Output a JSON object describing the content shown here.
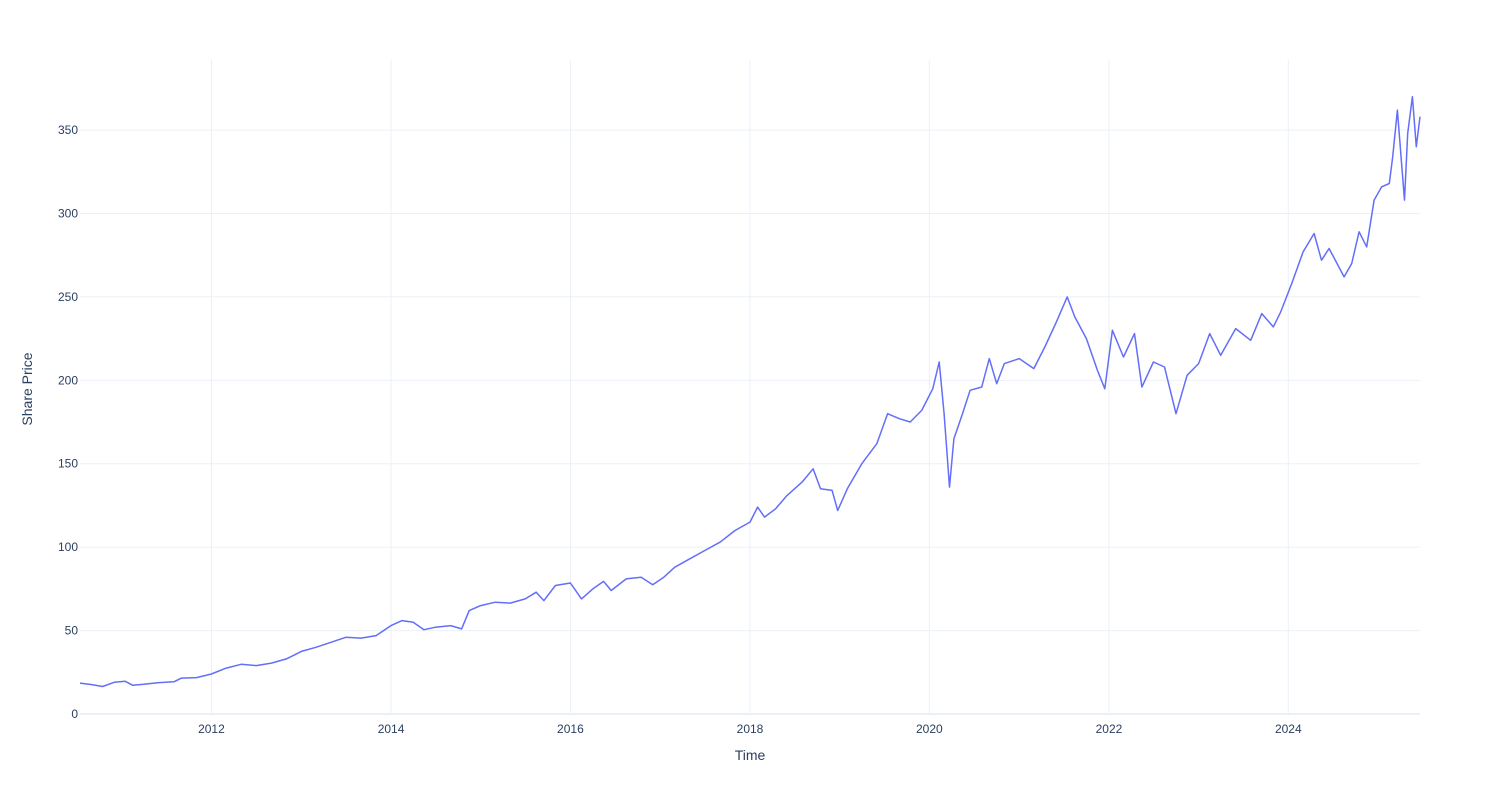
{
  "colors": {
    "background": "#ffffff",
    "grid": "#ebf0f8",
    "zeroline": "#ebf0f8",
    "text": "#2a3f5f",
    "series": "#636efa"
  },
  "chart_data": {
    "type": "line",
    "title": "",
    "xlabel": "Time",
    "ylabel": "Share Price",
    "xlim": [
      "2010-07-15",
      "2025-06-20"
    ],
    "ylim": [
      0,
      392
    ],
    "grid": true,
    "legend": "none",
    "x_ticks": [
      "2012",
      "2014",
      "2016",
      "2018",
      "2020",
      "2022",
      "2024"
    ],
    "y_ticks": [
      "0",
      "50",
      "100",
      "150",
      "200",
      "250",
      "300",
      "350"
    ],
    "series": [
      {
        "color": "#636efa",
        "points": [
          [
            "2010-07-15",
            18.5
          ],
          [
            "2010-09-01",
            17.6
          ],
          [
            "2010-10-15",
            16.5
          ],
          [
            "2010-12-01",
            19.0
          ],
          [
            "2011-01-15",
            19.6
          ],
          [
            "2011-02-15",
            17.2
          ],
          [
            "2011-04-01",
            17.8
          ],
          [
            "2011-06-01",
            18.8
          ],
          [
            "2011-08-01",
            19.3
          ],
          [
            "2011-09-01",
            21.5
          ],
          [
            "2011-11-01",
            21.8
          ],
          [
            "2012-01-01",
            24.0
          ],
          [
            "2012-03-01",
            27.5
          ],
          [
            "2012-05-01",
            29.8
          ],
          [
            "2012-07-01",
            29.0
          ],
          [
            "2012-09-01",
            30.5
          ],
          [
            "2012-11-01",
            33.0
          ],
          [
            "2013-01-01",
            37.5
          ],
          [
            "2013-03-01",
            40.0
          ],
          [
            "2013-05-01",
            43.0
          ],
          [
            "2013-07-01",
            46.0
          ],
          [
            "2013-09-01",
            45.5
          ],
          [
            "2013-11-01",
            47.0
          ],
          [
            "2014-01-01",
            53.0
          ],
          [
            "2014-02-15",
            56.0
          ],
          [
            "2014-04-01",
            55.0
          ],
          [
            "2014-05-15",
            50.5
          ],
          [
            "2014-07-01",
            52.0
          ],
          [
            "2014-09-01",
            53.0
          ],
          [
            "2014-10-15",
            51.0
          ],
          [
            "2014-11-15",
            62.0
          ],
          [
            "2015-01-01",
            65.0
          ],
          [
            "2015-03-01",
            67.0
          ],
          [
            "2015-05-01",
            66.5
          ],
          [
            "2015-07-01",
            69.0
          ],
          [
            "2015-08-15",
            73.0
          ],
          [
            "2015-09-15",
            68.0
          ],
          [
            "2015-11-01",
            77.0
          ],
          [
            "2016-01-01",
            78.5
          ],
          [
            "2016-02-15",
            69.0
          ],
          [
            "2016-04-01",
            75.0
          ],
          [
            "2016-05-15",
            79.5
          ],
          [
            "2016-06-15",
            74.0
          ],
          [
            "2016-08-15",
            81.0
          ],
          [
            "2016-10-15",
            82.0
          ],
          [
            "2016-12-01",
            77.5
          ],
          [
            "2017-01-15",
            82.0
          ],
          [
            "2017-03-01",
            88.0
          ],
          [
            "2017-05-01",
            93.0
          ],
          [
            "2017-07-01",
            98.0
          ],
          [
            "2017-09-01",
            103.0
          ],
          [
            "2017-11-01",
            110.0
          ],
          [
            "2018-01-01",
            115.0
          ],
          [
            "2018-02-01",
            124.0
          ],
          [
            "2018-03-01",
            118.0
          ],
          [
            "2018-04-15",
            123.0
          ],
          [
            "2018-06-01",
            131.0
          ],
          [
            "2018-08-01",
            139.0
          ],
          [
            "2018-09-15",
            147.0
          ],
          [
            "2018-10-15",
            135.0
          ],
          [
            "2018-12-01",
            134.0
          ],
          [
            "2018-12-24",
            122.0
          ],
          [
            "2019-02-01",
            135.0
          ],
          [
            "2019-04-01",
            150.0
          ],
          [
            "2019-06-01",
            162.0
          ],
          [
            "2019-07-15",
            180.0
          ],
          [
            "2019-09-01",
            177.0
          ],
          [
            "2019-10-15",
            175.0
          ],
          [
            "2019-12-01",
            182.0
          ],
          [
            "2020-01-15",
            195.0
          ],
          [
            "2020-02-10",
            211.0
          ],
          [
            "2020-03-01",
            180.0
          ],
          [
            "2020-03-23",
            136.0
          ],
          [
            "2020-04-10",
            165.0
          ],
          [
            "2020-05-15",
            180.0
          ],
          [
            "2020-06-15",
            194.0
          ],
          [
            "2020-08-01",
            196.0
          ],
          [
            "2020-09-01",
            213.0
          ],
          [
            "2020-10-01",
            198.0
          ],
          [
            "2020-11-01",
            210.0
          ],
          [
            "2021-01-01",
            213.0
          ],
          [
            "2021-03-01",
            207.0
          ],
          [
            "2021-04-15",
            220.0
          ],
          [
            "2021-06-01",
            235.0
          ],
          [
            "2021-07-15",
            250.0
          ],
          [
            "2021-08-15",
            238.0
          ],
          [
            "2021-10-01",
            225.0
          ],
          [
            "2021-11-15",
            206.0
          ],
          [
            "2021-12-15",
            195.0
          ],
          [
            "2022-01-15",
            230.0
          ],
          [
            "2022-03-01",
            214.0
          ],
          [
            "2022-04-15",
            228.0
          ],
          [
            "2022-05-15",
            196.0
          ],
          [
            "2022-07-01",
            211.0
          ],
          [
            "2022-08-15",
            208.0
          ],
          [
            "2022-10-01",
            180.0
          ],
          [
            "2022-11-15",
            203.0
          ],
          [
            "2023-01-01",
            210.0
          ],
          [
            "2023-02-15",
            228.0
          ],
          [
            "2023-04-01",
            215.0
          ],
          [
            "2023-06-01",
            231.0
          ],
          [
            "2023-08-01",
            224.0
          ],
          [
            "2023-09-15",
            240.0
          ],
          [
            "2023-11-01",
            232.0
          ],
          [
            "2023-12-01",
            241.0
          ],
          [
            "2024-01-15",
            258.0
          ],
          [
            "2024-03-01",
            277.0
          ],
          [
            "2024-04-15",
            288.0
          ],
          [
            "2024-05-15",
            272.0
          ],
          [
            "2024-06-15",
            279.0
          ],
          [
            "2024-08-15",
            262.0
          ],
          [
            "2024-09-15",
            270.0
          ],
          [
            "2024-10-15",
            289.0
          ],
          [
            "2024-11-15",
            280.0
          ],
          [
            "2024-12-15",
            308.0
          ],
          [
            "2025-01-15",
            316.0
          ],
          [
            "2025-02-15",
            318.0
          ],
          [
            "2025-03-01",
            334.0
          ],
          [
            "2025-03-20",
            362.0
          ],
          [
            "2025-04-05",
            332.0
          ],
          [
            "2025-04-18",
            308.0
          ],
          [
            "2025-05-01",
            348.0
          ],
          [
            "2025-05-20",
            370.0
          ],
          [
            "2025-06-05",
            340.0
          ],
          [
            "2025-06-20",
            358.0
          ]
        ]
      }
    ]
  }
}
